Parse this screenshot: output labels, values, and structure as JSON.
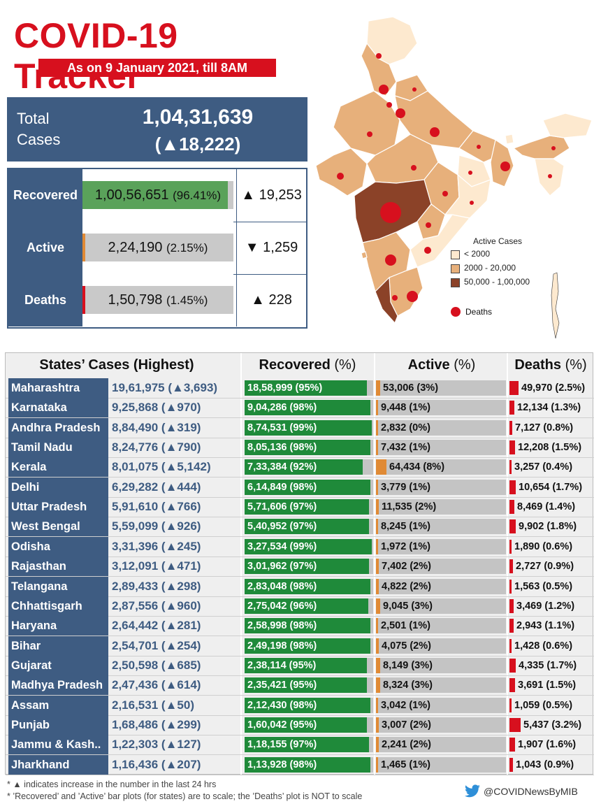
{
  "header": {
    "title": "COVID-19 Tracker",
    "date_banner": "As on 9 January 2021, till 8AM"
  },
  "total": {
    "label_line1": "Total",
    "label_line2": "Cases",
    "value": "1,04,31,639",
    "delta": "(▲18,222)"
  },
  "summary": [
    {
      "label": "Recovered",
      "value": "1,00,56,651",
      "pct": "(96.41%)",
      "pct_num": 96.41,
      "delta": "▲ 19,253",
      "color": "#5aa25a"
    },
    {
      "label": "Active",
      "value": "2,24,190",
      "pct": "(2.15%)",
      "pct_num": 2.15,
      "delta": "▼ 1,259",
      "color": "#e08a35"
    },
    {
      "label": "Deaths",
      "value": "1,50,798",
      "pct": "(1.45%)",
      "pct_num": 1.45,
      "delta": "▲ 228",
      "color": "#d7101e"
    }
  ],
  "map_legend": {
    "title": "Active Cases",
    "items": [
      {
        "label": "< 2000",
        "color": "#fde9cf"
      },
      {
        "label": "2000 - 20,000",
        "color": "#e7b07b"
      },
      {
        "label": "50,000 - 1,00,000",
        "color": "#8b4228"
      }
    ],
    "deaths_label": "Deaths"
  },
  "table_headers": {
    "states": "States’ Cases (Highest)",
    "recovered": "Recovered",
    "active": "Active",
    "deaths": "Deaths",
    "pct": "(%)"
  },
  "chart_data": {
    "type": "table",
    "columns": [
      "State",
      "Cases",
      "Case increase",
      "Recovered",
      "Recovered %",
      "Active",
      "Active %",
      "Deaths",
      "Deaths %"
    ],
    "rows": [
      {
        "state": "Maharashtra",
        "cases": "19,61,975",
        "delta": "3,693",
        "recovered": "18,58,999",
        "rec_pct": 95,
        "active": "53,006",
        "act_pct": 3,
        "deaths": "49,970",
        "dth_pct": "2.5"
      },
      {
        "state": "Karnataka",
        "cases": "9,25,868",
        "delta": "970",
        "recovered": "9,04,286",
        "rec_pct": 98,
        "active": "9,448",
        "act_pct": 1,
        "deaths": "12,134",
        "dth_pct": "1.3"
      },
      {
        "state": "Andhra Pradesh",
        "cases": "8,84,490",
        "delta": "319",
        "recovered": "8,74,531",
        "rec_pct": 99,
        "active": "2,832",
        "act_pct": 0,
        "deaths": "7,127",
        "dth_pct": "0.8"
      },
      {
        "state": "Tamil Nadu",
        "cases": "8,24,776",
        "delta": "790",
        "recovered": "8,05,136",
        "rec_pct": 98,
        "active": "7,432",
        "act_pct": 1,
        "deaths": "12,208",
        "dth_pct": "1.5"
      },
      {
        "state": "Kerala",
        "cases": "8,01,075",
        "delta": "5,142",
        "recovered": "7,33,384",
        "rec_pct": 92,
        "active": "64,434",
        "act_pct": 8,
        "deaths": "3,257",
        "dth_pct": "0.4"
      },
      {
        "state": "Delhi",
        "cases": "6,29,282",
        "delta": "444",
        "recovered": "6,14,849",
        "rec_pct": 98,
        "active": "3,779",
        "act_pct": 1,
        "deaths": "10,654",
        "dth_pct": "1.7"
      },
      {
        "state": "Uttar Pradesh",
        "cases": "5,91,610",
        "delta": "766",
        "recovered": "5,71,606",
        "rec_pct": 97,
        "active": "11,535",
        "act_pct": 2,
        "deaths": "8,469",
        "dth_pct": "1.4"
      },
      {
        "state": "West Bengal",
        "cases": "5,59,099",
        "delta": "926",
        "recovered": "5,40,952",
        "rec_pct": 97,
        "active": "8,245",
        "act_pct": 1,
        "deaths": "9,902",
        "dth_pct": "1.8"
      },
      {
        "state": "Odisha",
        "cases": "3,31,396",
        "delta": "245",
        "recovered": "3,27,534",
        "rec_pct": 99,
        "active": "1,972",
        "act_pct": 1,
        "deaths": "1,890",
        "dth_pct": "0.6"
      },
      {
        "state": "Rajasthan",
        "cases": "3,12,091",
        "delta": "471",
        "recovered": "3,01,962",
        "rec_pct": 97,
        "active": "7,402",
        "act_pct": 2,
        "deaths": "2,727",
        "dth_pct": "0.9"
      },
      {
        "state": "Telangana",
        "cases": "2,89,433",
        "delta": "298",
        "recovered": "2,83,048",
        "rec_pct": 98,
        "active": "4,822",
        "act_pct": 2,
        "deaths": "1,563",
        "dth_pct": "0.5"
      },
      {
        "state": "Chhattisgarh",
        "cases": "2,87,556",
        "delta": "960",
        "recovered": "2,75,042",
        "rec_pct": 96,
        "active": "9,045",
        "act_pct": 3,
        "deaths": "3,469",
        "dth_pct": "1.2"
      },
      {
        "state": "Haryana",
        "cases": "2,64,442",
        "delta": "281",
        "recovered": "2,58,998",
        "rec_pct": 98,
        "active": "2,501",
        "act_pct": 1,
        "deaths": "2,943",
        "dth_pct": "1.1"
      },
      {
        "state": "Bihar",
        "cases": "2,54,701",
        "delta": "254",
        "recovered": "2,49,198",
        "rec_pct": 98,
        "active": "4,075",
        "act_pct": 2,
        "deaths": "1,428",
        "dth_pct": "0.6"
      },
      {
        "state": "Gujarat",
        "cases": "2,50,598",
        "delta": "685",
        "recovered": "2,38,114",
        "rec_pct": 95,
        "active": "8,149",
        "act_pct": 3,
        "deaths": "4,335",
        "dth_pct": "1.7"
      },
      {
        "state": "Madhya Pradesh",
        "cases": "2,47,436",
        "delta": "614",
        "recovered": "2,35,421",
        "rec_pct": 95,
        "active": "8,324",
        "act_pct": 3,
        "deaths": "3,691",
        "dth_pct": "1.5"
      },
      {
        "state": "Assam",
        "cases": "2,16,531",
        "delta": "50",
        "recovered": "2,12,430",
        "rec_pct": 98,
        "active": "3,042",
        "act_pct": 1,
        "deaths": "1,059",
        "dth_pct": "0.5"
      },
      {
        "state": "Punjab",
        "cases": "1,68,486",
        "delta": "299",
        "recovered": "1,60,042",
        "rec_pct": 95,
        "active": "3,007",
        "act_pct": 2,
        "deaths": "5,437",
        "dth_pct": "3.2"
      },
      {
        "state": "Jammu & Kash..",
        "cases": "1,22,303",
        "delta": "127",
        "recovered": "1,18,155",
        "rec_pct": 97,
        "active": "2,241",
        "act_pct": 2,
        "deaths": "1,907",
        "dth_pct": "1.6"
      },
      {
        "state": "Jharkhand",
        "cases": "1,16,436",
        "delta": "207",
        "recovered": "1,13,928",
        "rec_pct": 98,
        "active": "1,465",
        "act_pct": 1,
        "deaths": "1,043",
        "dth_pct": "0.9"
      }
    ]
  },
  "footnotes": [
    "* ▲ indicates increase in the number in the last 24 hrs",
    "* ’Recovered’ and ’Active’ bar plots (for states) are to scale; the ’Deaths’ plot is NOT to scale"
  ],
  "twitter_handle": "@COVIDNewsByMIB"
}
